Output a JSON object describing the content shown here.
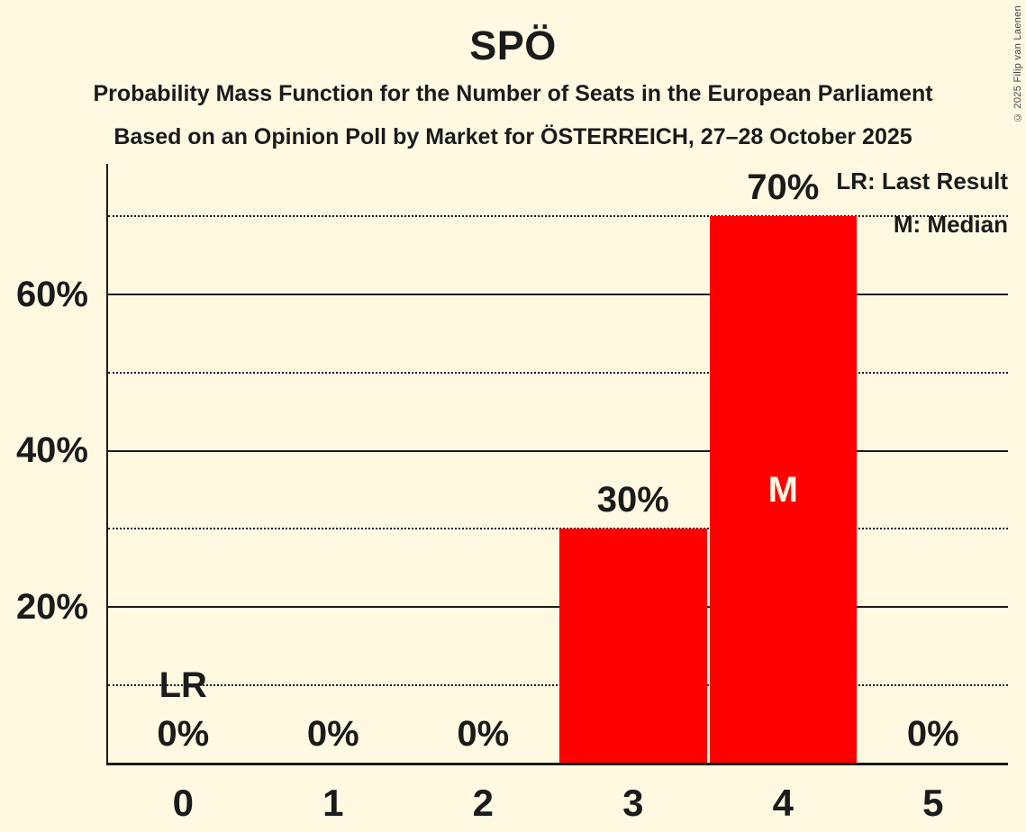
{
  "header": {
    "title": "SPÖ",
    "subtitle1": "Probability Mass Function for the Number of Seats in the European Parliament",
    "subtitle2": "Based on an Opinion Poll by Market for ÖSTERREICH, 27–28 October 2025"
  },
  "legend": {
    "lr": "LR: Last Result",
    "median": "M: Median"
  },
  "copyright": "© 2025 Filip van Laenen",
  "colors": {
    "background": "#FFF9E2",
    "bar": "#FE0000",
    "text": "#1B1B1B",
    "median_text": "#FFF9E2"
  },
  "chart_data": {
    "type": "bar",
    "title": "SPÖ",
    "categories": [
      "0",
      "1",
      "2",
      "3",
      "4",
      "5"
    ],
    "values": [
      0,
      0,
      0,
      30,
      70,
      0
    ],
    "value_labels": [
      "0%",
      "0%",
      "0%",
      "30%",
      "70%",
      "0%"
    ],
    "ylim": [
      0,
      76.7
    ],
    "ytick_values": [
      20,
      40,
      60
    ],
    "ytick_labels": [
      "20%",
      "40%",
      "60%"
    ],
    "minor_gridline_values": [
      10,
      30,
      50,
      70
    ],
    "grid": "horizontal",
    "legend_entries": [
      "LR: Last Result",
      "M: Median"
    ],
    "legend_position": "top-right",
    "annotations": {
      "last_result": {
        "label": "LR",
        "category": "0"
      },
      "median": {
        "label": "M",
        "category": "4"
      }
    },
    "bar_color": "#FE0000"
  }
}
